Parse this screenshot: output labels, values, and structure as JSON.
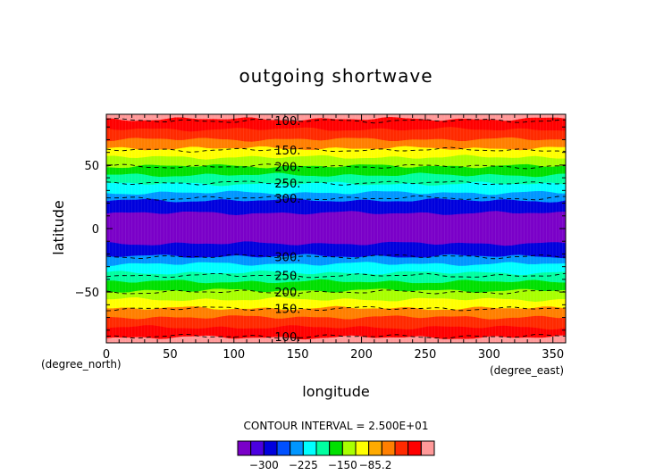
{
  "chart_data": {
    "type": "heatmap",
    "title": "outgoing shortwave",
    "xlabel": "longitude",
    "ylabel": "latitude",
    "x_unit": "(degree_east)",
    "y_unit": "(degree_north)",
    "xlim": [
      0,
      360
    ],
    "ylim": [
      -90,
      90
    ],
    "xticks": [
      0,
      50,
      100,
      150,
      200,
      250,
      300,
      350
    ],
    "yticks": [
      -50,
      0,
      50
    ],
    "contour_interval_text": "CONTOUR INTERVAL = 2.500E+01",
    "bands": [
      {
        "lat_from": 86,
        "lat_to": 90,
        "color": "#ff9999"
      },
      {
        "lat_from": 78,
        "lat_to": 86,
        "color": "#ff0000"
      },
      {
        "lat_from": 70,
        "lat_to": 78,
        "color": "#ff2a00"
      },
      {
        "lat_from": 63,
        "lat_to": 70,
        "color": "#ff7f00"
      },
      {
        "lat_from": 56,
        "lat_to": 63,
        "color": "#ffff00"
      },
      {
        "lat_from": 49,
        "lat_to": 56,
        "color": "#a8ff00"
      },
      {
        "lat_from": 42,
        "lat_to": 49,
        "color": "#00e000"
      },
      {
        "lat_from": 35,
        "lat_to": 42,
        "color": "#00ffa0"
      },
      {
        "lat_from": 28,
        "lat_to": 35,
        "color": "#00ffff"
      },
      {
        "lat_from": 22,
        "lat_to": 28,
        "color": "#0096ff"
      },
      {
        "lat_from": 12,
        "lat_to": 22,
        "color": "#0000dd"
      },
      {
        "lat_from": -12,
        "lat_to": 12,
        "color": "#7a00c8"
      },
      {
        "lat_from": -22,
        "lat_to": -12,
        "color": "#0000dd"
      },
      {
        "lat_from": -28,
        "lat_to": -22,
        "color": "#0096ff"
      },
      {
        "lat_from": -35,
        "lat_to": -28,
        "color": "#00ffff"
      },
      {
        "lat_from": -42,
        "lat_to": -35,
        "color": "#00ffa0"
      },
      {
        "lat_from": -49,
        "lat_to": -42,
        "color": "#00e000"
      },
      {
        "lat_from": -56,
        "lat_to": -49,
        "color": "#a8ff00"
      },
      {
        "lat_from": -63,
        "lat_to": -56,
        "color": "#ffff00"
      },
      {
        "lat_from": -70,
        "lat_to": -63,
        "color": "#ff7f00"
      },
      {
        "lat_from": -78,
        "lat_to": -70,
        "color": "#ff2a00"
      },
      {
        "lat_from": -86,
        "lat_to": -78,
        "color": "#ff0000"
      },
      {
        "lat_from": -90,
        "lat_to": -86,
        "color": "#ff9999"
      }
    ],
    "contours": [
      {
        "lat": 85,
        "label": "100."
      },
      {
        "lat": 62,
        "label": "150."
      },
      {
        "lat": 49,
        "label": "200."
      },
      {
        "lat": 36,
        "label": "250."
      },
      {
        "lat": 24,
        "label": "300."
      },
      {
        "lat": -22,
        "label": "300."
      },
      {
        "lat": -37,
        "label": "250."
      },
      {
        "lat": -50,
        "label": "200."
      },
      {
        "lat": -63,
        "label": "150."
      },
      {
        "lat": -85,
        "label": "100."
      }
    ],
    "colorbar": {
      "colors": [
        "#7a00c8",
        "#4b00e0",
        "#0000dd",
        "#0050ff",
        "#0096ff",
        "#00ffff",
        "#00ffa0",
        "#00e000",
        "#a8ff00",
        "#ffff00",
        "#ffaa00",
        "#ff7f00",
        "#ff2a00",
        "#ff0000",
        "#ff9999"
      ],
      "tick_labels": [
        "-300",
        "-225",
        "-150",
        "-85.2"
      ],
      "tick_label_bins": [
        2,
        5,
        8,
        10.5
      ]
    }
  }
}
